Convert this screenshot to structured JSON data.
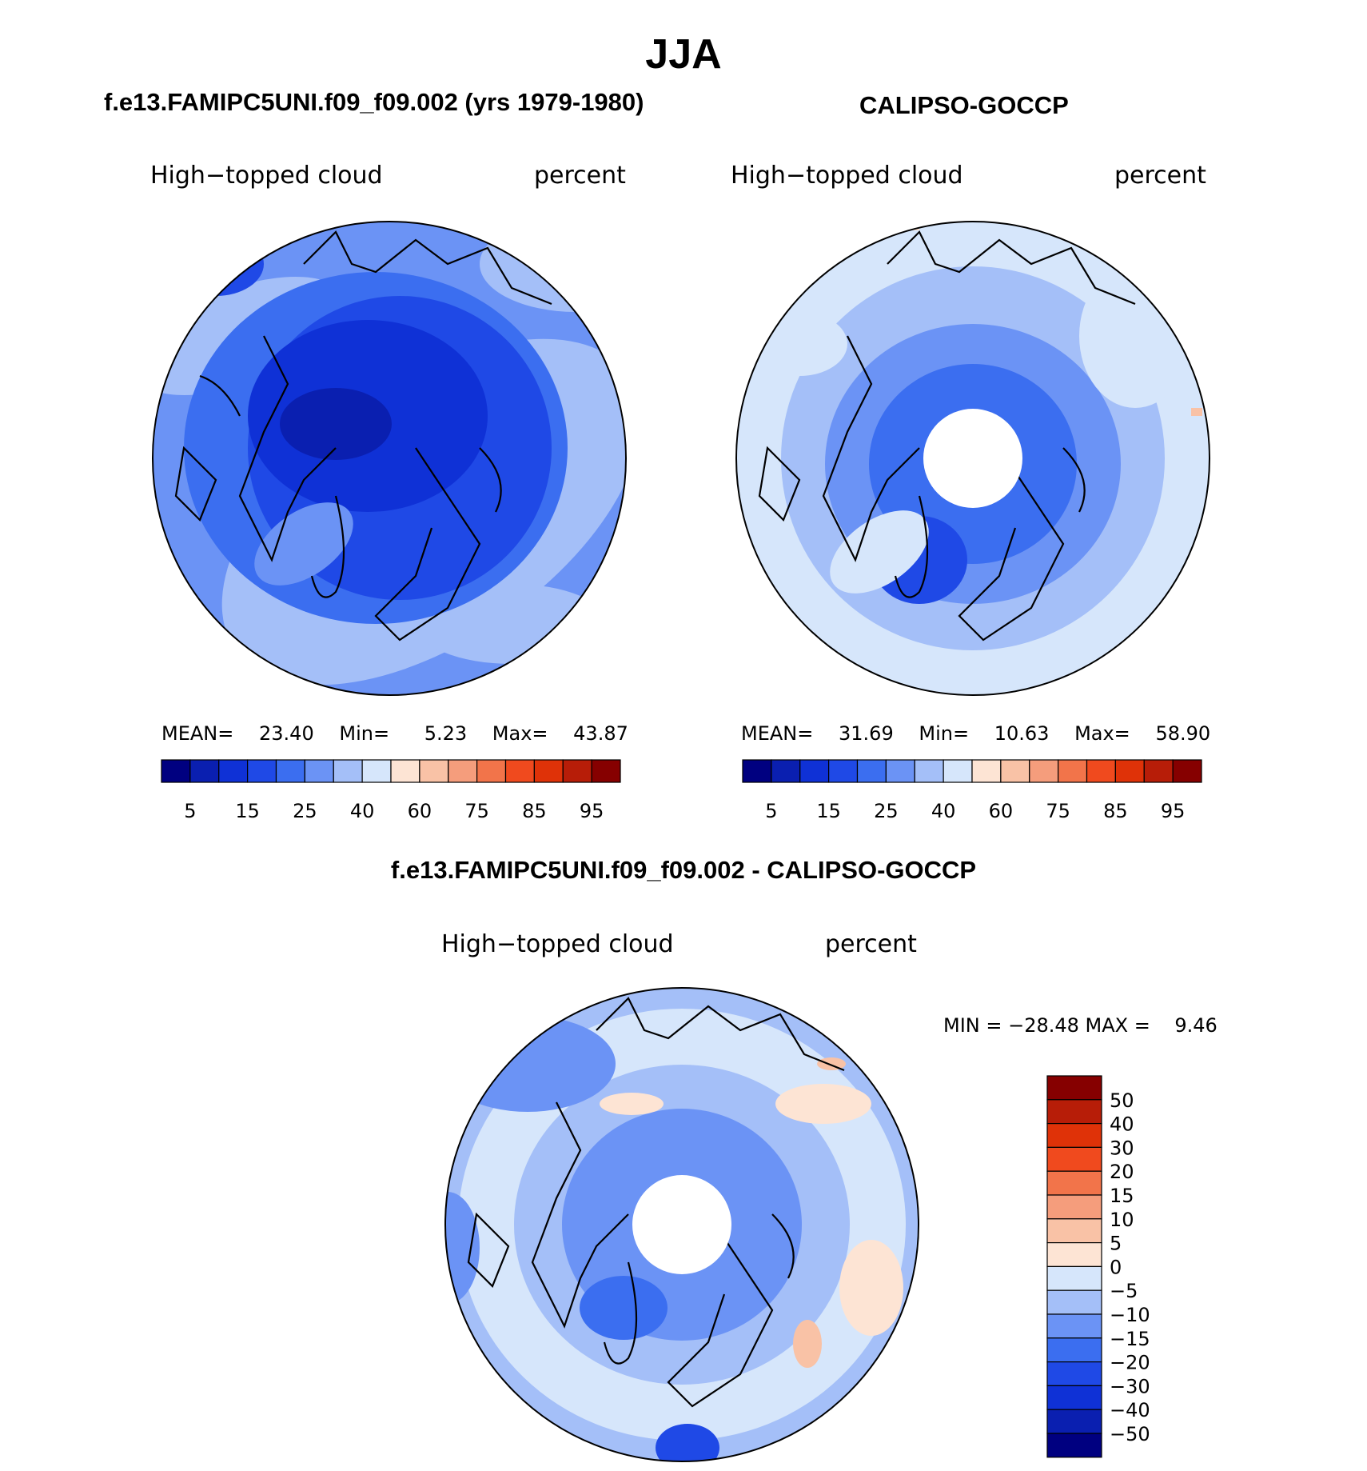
{
  "page": {
    "title": "JJA"
  },
  "palette": {
    "abs": [
      "#000080",
      "#0a1fb0",
      "#0f31d6",
      "#1f49e6",
      "#3b6ef0",
      "#6b93f5",
      "#a4bff8",
      "#d6e6fb",
      "#fde4d4",
      "#f9c2a6",
      "#f59d7c",
      "#f2744a",
      "#f04a1e",
      "#df3208",
      "#b71d08",
      "#860000"
    ],
    "diff": [
      "#000080",
      "#0a1fb0",
      "#0f31d6",
      "#1f49e6",
      "#3b6ef0",
      "#6b93f5",
      "#a4bff8",
      "#d6e6fb",
      "#fde4d4",
      "#f9c2a6",
      "#f59d7c",
      "#f2744a",
      "#f04a1e",
      "#df3208",
      "#b71d08",
      "#860000"
    ]
  },
  "panels": [
    {
      "id": "model",
      "heading": "f.e13.FAMIPC5UNI.f09_f09.002 (yrs 1979-1980)",
      "variable": "High−topped cloud",
      "units": "percent",
      "stats": {
        "mean_label": "MEAN=",
        "mean": "23.40",
        "min_label": "Min=",
        "min": "5.23",
        "max_label": "Max=",
        "max": "43.87"
      },
      "colorbar_ticks": [
        "5",
        "15",
        "25",
        "40",
        "60",
        "75",
        "85",
        "95"
      ],
      "has_polar_hole": false
    },
    {
      "id": "obs",
      "heading": "CALIPSO-GOCCP",
      "variable": "High−topped cloud",
      "units": "percent",
      "stats": {
        "mean_label": "MEAN=",
        "mean": "31.69",
        "min_label": "Min=",
        "min": "10.63",
        "max_label": "Max=",
        "max": "58.90"
      },
      "colorbar_ticks": [
        "5",
        "15",
        "25",
        "40",
        "60",
        "75",
        "85",
        "95"
      ],
      "has_polar_hole": true
    }
  ],
  "difference": {
    "heading": "f.e13.FAMIPC5UNI.f09_f09.002 - CALIPSO-GOCCP",
    "variable": "High−topped cloud",
    "units": "percent",
    "minmax": "MIN = −28.48 MAX =    9.46",
    "colorbar_ticks": [
      "50",
      "40",
      "30",
      "20",
      "15",
      "10",
      "5",
      "0",
      "−5",
      "−10",
      "−15",
      "−20",
      "−30",
      "−40",
      "−50"
    ],
    "has_polar_hole": true
  }
}
